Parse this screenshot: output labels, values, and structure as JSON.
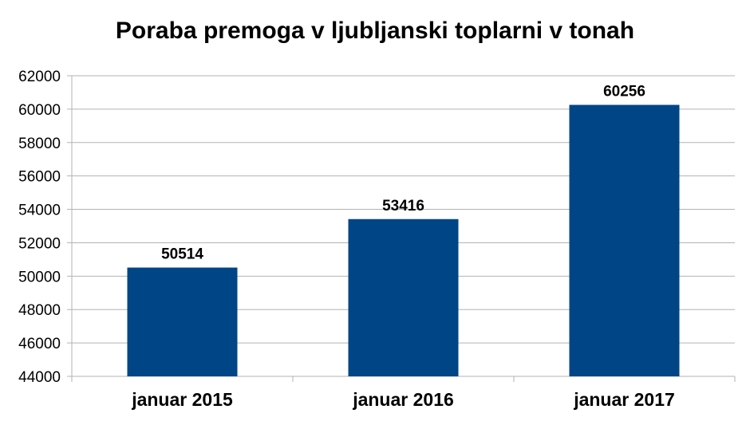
{
  "chart_data": {
    "type": "bar",
    "title": "Poraba premoga v ljubljanski toplarni v tonah",
    "categories": [
      "januar 2015",
      "januar 2016",
      "januar 2017"
    ],
    "values": [
      50514,
      53416,
      60256
    ],
    "data_labels": [
      "50514",
      "53416",
      "60256"
    ],
    "ylim": [
      44000,
      62000
    ],
    "yticks": [
      44000,
      46000,
      48000,
      50000,
      52000,
      54000,
      56000,
      58000,
      60000,
      62000
    ],
    "grid": true,
    "legend": "none",
    "bar_color": "#004586"
  }
}
